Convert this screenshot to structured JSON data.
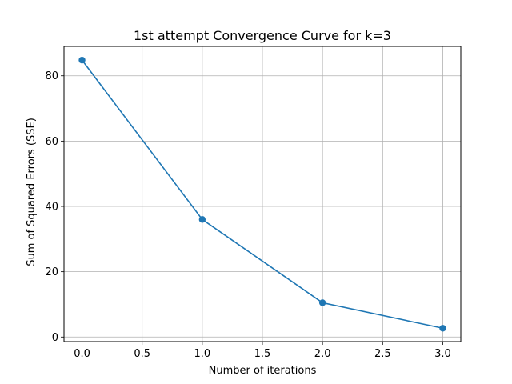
{
  "chart_data": {
    "type": "line",
    "title": "1st attempt Convergence Curve for k=3",
    "xlabel": "Number of iterations",
    "ylabel": "Sum of Squared Errors (SSE)",
    "x": [
      0,
      1,
      2,
      3
    ],
    "series": [
      {
        "values": [
          84.8,
          36.0,
          10.5,
          2.7
        ],
        "color": "#1f77b4"
      }
    ],
    "xlim": [
      -0.15,
      3.15
    ],
    "ylim": [
      -1.4,
      89.0
    ],
    "xticks": [
      0.0,
      0.5,
      1.0,
      1.5,
      2.0,
      2.5,
      3.0
    ],
    "xtick_labels": [
      "0.0",
      "0.5",
      "1.0",
      "1.5",
      "2.0",
      "2.5",
      "3.0"
    ],
    "yticks": [
      0,
      20,
      40,
      60,
      80
    ],
    "ytick_labels": [
      "0",
      "20",
      "40",
      "60",
      "80"
    ],
    "grid": true,
    "marker": "circle"
  }
}
